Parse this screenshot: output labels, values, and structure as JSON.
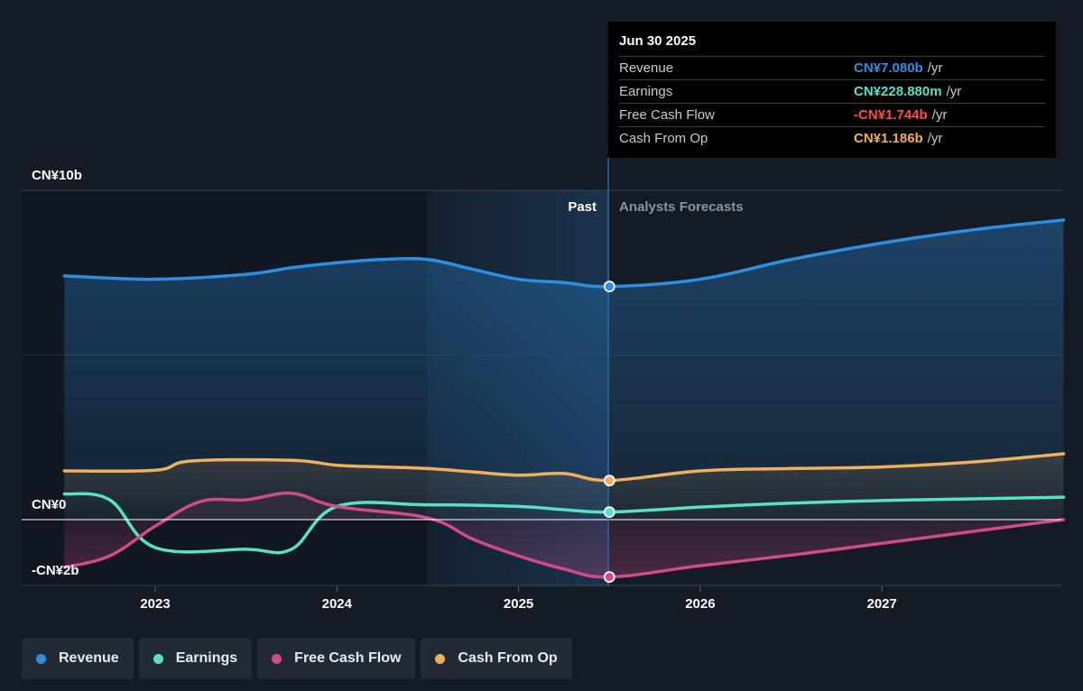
{
  "tooltip": {
    "date": "Jun 30 2025",
    "rows": [
      {
        "label": "Revenue",
        "value": "CN¥7.080b",
        "unit": "/yr",
        "color": "#2d8fe3"
      },
      {
        "label": "Earnings",
        "value": "CN¥228.880m",
        "unit": "/yr",
        "color": "#58e1c6"
      },
      {
        "label": "Free Cash Flow",
        "value": "-CN¥1.744b",
        "unit": "/yr",
        "color": "#ff4b4b"
      },
      {
        "label": "Cash From Op",
        "value": "CN¥1.186b",
        "unit": "/yr",
        "color": "#eeb05f"
      }
    ]
  },
  "legend": [
    {
      "label": "Revenue",
      "color": "#2d8fe3"
    },
    {
      "label": "Earnings",
      "color": "#58e1c6"
    },
    {
      "label": "Free Cash Flow",
      "color": "#cf4b8d"
    },
    {
      "label": "Cash From Op",
      "color": "#eeb05f"
    }
  ],
  "chart_data": {
    "type": "line",
    "y_tick_labels": [
      "CN¥10b",
      "CN¥0",
      "-CN¥2b"
    ],
    "ylim": [
      -2,
      10
    ],
    "xlim": [
      2022.5,
      2028.0
    ],
    "x_tick_labels": [
      "2023",
      "2024",
      "2025",
      "2026",
      "2027"
    ],
    "x_ticks": [
      2023,
      2024,
      2025,
      2026,
      2027
    ],
    "divider_labels": {
      "past": "Past",
      "forecast": "Analysts Forecasts"
    },
    "divider_x": 2025.5,
    "highlight_start_x": 2024.5,
    "series": [
      {
        "name": "Revenue",
        "color": "#2d8fe3",
        "fill": true,
        "points": [
          [
            2022.5,
            7.4
          ],
          [
            2023.0,
            7.3
          ],
          [
            2023.5,
            7.45
          ],
          [
            2023.75,
            7.65
          ],
          [
            2024.0,
            7.8
          ],
          [
            2024.25,
            7.9
          ],
          [
            2024.5,
            7.9
          ],
          [
            2024.75,
            7.6
          ],
          [
            2025.0,
            7.3
          ],
          [
            2025.25,
            7.2
          ],
          [
            2025.5,
            7.08
          ],
          [
            2026.0,
            7.3
          ],
          [
            2026.5,
            7.9
          ],
          [
            2027.0,
            8.4
          ],
          [
            2027.5,
            8.8
          ],
          [
            2028.0,
            9.1
          ]
        ]
      },
      {
        "name": "Cash From Op",
        "color": "#eeb05f",
        "fill": true,
        "points": [
          [
            2022.5,
            1.48
          ],
          [
            2023.0,
            1.5
          ],
          [
            2023.2,
            1.78
          ],
          [
            2023.75,
            1.8
          ],
          [
            2024.0,
            1.65
          ],
          [
            2024.25,
            1.6
          ],
          [
            2024.5,
            1.55
          ],
          [
            2024.75,
            1.45
          ],
          [
            2025.0,
            1.35
          ],
          [
            2025.25,
            1.4
          ],
          [
            2025.5,
            1.19
          ],
          [
            2026.0,
            1.48
          ],
          [
            2026.5,
            1.55
          ],
          [
            2027.0,
            1.6
          ],
          [
            2027.5,
            1.75
          ],
          [
            2028.0,
            2.0
          ]
        ]
      },
      {
        "name": "Earnings",
        "color": "#58e1c6",
        "fill": false,
        "points": [
          [
            2022.5,
            0.78
          ],
          [
            2022.75,
            0.6
          ],
          [
            2023.0,
            -0.85
          ],
          [
            2023.5,
            -0.9
          ],
          [
            2023.75,
            -0.9
          ],
          [
            2024.0,
            0.4
          ],
          [
            2024.5,
            0.45
          ],
          [
            2025.0,
            0.4
          ],
          [
            2025.25,
            0.3
          ],
          [
            2025.5,
            0.229
          ],
          [
            2026.0,
            0.38
          ],
          [
            2026.5,
            0.5
          ],
          [
            2027.0,
            0.58
          ],
          [
            2027.5,
            0.63
          ],
          [
            2028.0,
            0.68
          ]
        ]
      },
      {
        "name": "Free Cash Flow",
        "color": "#cf4b8d",
        "fill": true,
        "points": [
          [
            2022.5,
            -1.45
          ],
          [
            2022.75,
            -1.1
          ],
          [
            2023.0,
            -0.2
          ],
          [
            2023.25,
            0.55
          ],
          [
            2023.5,
            0.6
          ],
          [
            2023.75,
            0.8
          ],
          [
            2024.0,
            0.4
          ],
          [
            2024.5,
            0.05
          ],
          [
            2024.75,
            -0.6
          ],
          [
            2025.0,
            -1.1
          ],
          [
            2025.25,
            -1.5
          ],
          [
            2025.5,
            -1.744
          ],
          [
            2026.0,
            -1.4
          ],
          [
            2026.5,
            -1.08
          ],
          [
            2027.0,
            -0.72
          ],
          [
            2027.5,
            -0.36
          ],
          [
            2028.0,
            0.0
          ]
        ]
      }
    ],
    "highlight_points": [
      {
        "series": "Revenue",
        "x": 2025.5,
        "y": 7.08
      },
      {
        "series": "Cash From Op",
        "x": 2025.5,
        "y": 1.186
      },
      {
        "series": "Earnings",
        "x": 2025.5,
        "y": 0.229
      },
      {
        "series": "Free Cash Flow",
        "x": 2025.5,
        "y": -1.744
      }
    ]
  }
}
